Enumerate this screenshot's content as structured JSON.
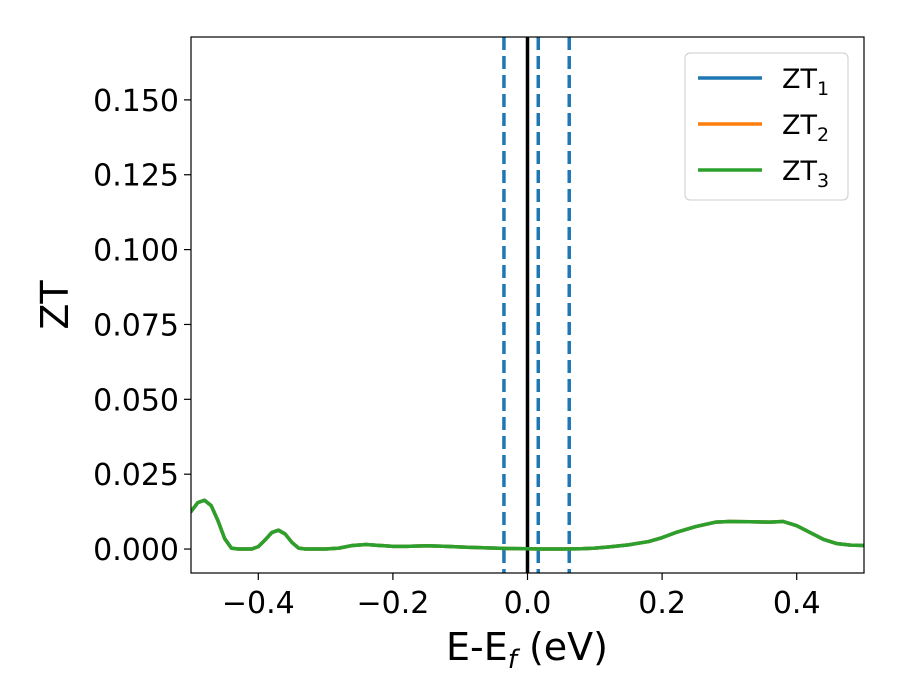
{
  "chart_data": {
    "type": "line",
    "xlabel_main": "E-E",
    "xlabel_sub": "f",
    "xlabel_unit": " (eV)",
    "ylabel": "ZT",
    "xlim": [
      -0.5,
      0.5
    ],
    "ylim": [
      -0.008,
      0.171
    ],
    "xticks": [
      -0.4,
      -0.2,
      0.0,
      0.2,
      0.4
    ],
    "xtick_labels": [
      "−0.4",
      "−0.2",
      "0.0",
      "0.2",
      "0.4"
    ],
    "yticks": [
      0.0,
      0.025,
      0.05,
      0.075,
      0.1,
      0.125,
      0.15
    ],
    "ytick_labels": [
      "0.000",
      "0.025",
      "0.050",
      "0.075",
      "0.100",
      "0.125",
      "0.150"
    ],
    "grid": false,
    "legend_placement": "top-right",
    "vlines": [
      {
        "x": 0.0,
        "color": "#000000",
        "style": "solid"
      },
      {
        "x": -0.035,
        "color": "#1f77b4",
        "style": "dashed"
      },
      {
        "x": 0.016,
        "color": "#1f77b4",
        "style": "dashed"
      },
      {
        "x": 0.062,
        "color": "#1f77b4",
        "style": "dashed"
      }
    ],
    "series": [
      {
        "name": "ZT",
        "sub": "1",
        "color": "#1f77b4"
      },
      {
        "name": "ZT",
        "sub": "2",
        "color": "#ff7f0e"
      },
      {
        "name": "ZT",
        "sub": "3",
        "color": "#2ca02c"
      }
    ],
    "x": [
      -0.5,
      -0.49,
      -0.48,
      -0.47,
      -0.46,
      -0.45,
      -0.44,
      -0.43,
      -0.42,
      -0.41,
      -0.4,
      -0.39,
      -0.38,
      -0.37,
      -0.36,
      -0.35,
      -0.34,
      -0.33,
      -0.32,
      -0.31,
      -0.3,
      -0.28,
      -0.26,
      -0.24,
      -0.22,
      -0.2,
      -0.18,
      -0.15,
      -0.12,
      -0.09,
      -0.06,
      -0.03,
      0.0,
      0.02,
      0.05,
      0.08,
      0.1,
      0.12,
      0.15,
      0.18,
      0.2,
      0.22,
      0.25,
      0.28,
      0.3,
      0.33,
      0.36,
      0.38,
      0.4,
      0.42,
      0.44,
      0.46,
      0.48,
      0.5
    ],
    "y": [
      0.0125,
      0.0155,
      0.0163,
      0.0145,
      0.0095,
      0.0035,
      0.0003,
      0.0,
      0.0,
      0.0,
      0.0008,
      0.003,
      0.0055,
      0.0063,
      0.005,
      0.0022,
      0.0003,
      0.0,
      0.0,
      0.0,
      0.0,
      0.0003,
      0.0012,
      0.0015,
      0.0012,
      0.0009,
      0.0009,
      0.0011,
      0.0009,
      0.0006,
      0.0004,
      0.0002,
      0.0001,
      0.0,
      0.0,
      0.0001,
      0.0003,
      0.0007,
      0.0014,
      0.0025,
      0.0038,
      0.0055,
      0.0075,
      0.009,
      0.0092,
      0.0091,
      0.009,
      0.0092,
      0.0078,
      0.0055,
      0.0032,
      0.0018,
      0.0013,
      0.0012
    ]
  }
}
